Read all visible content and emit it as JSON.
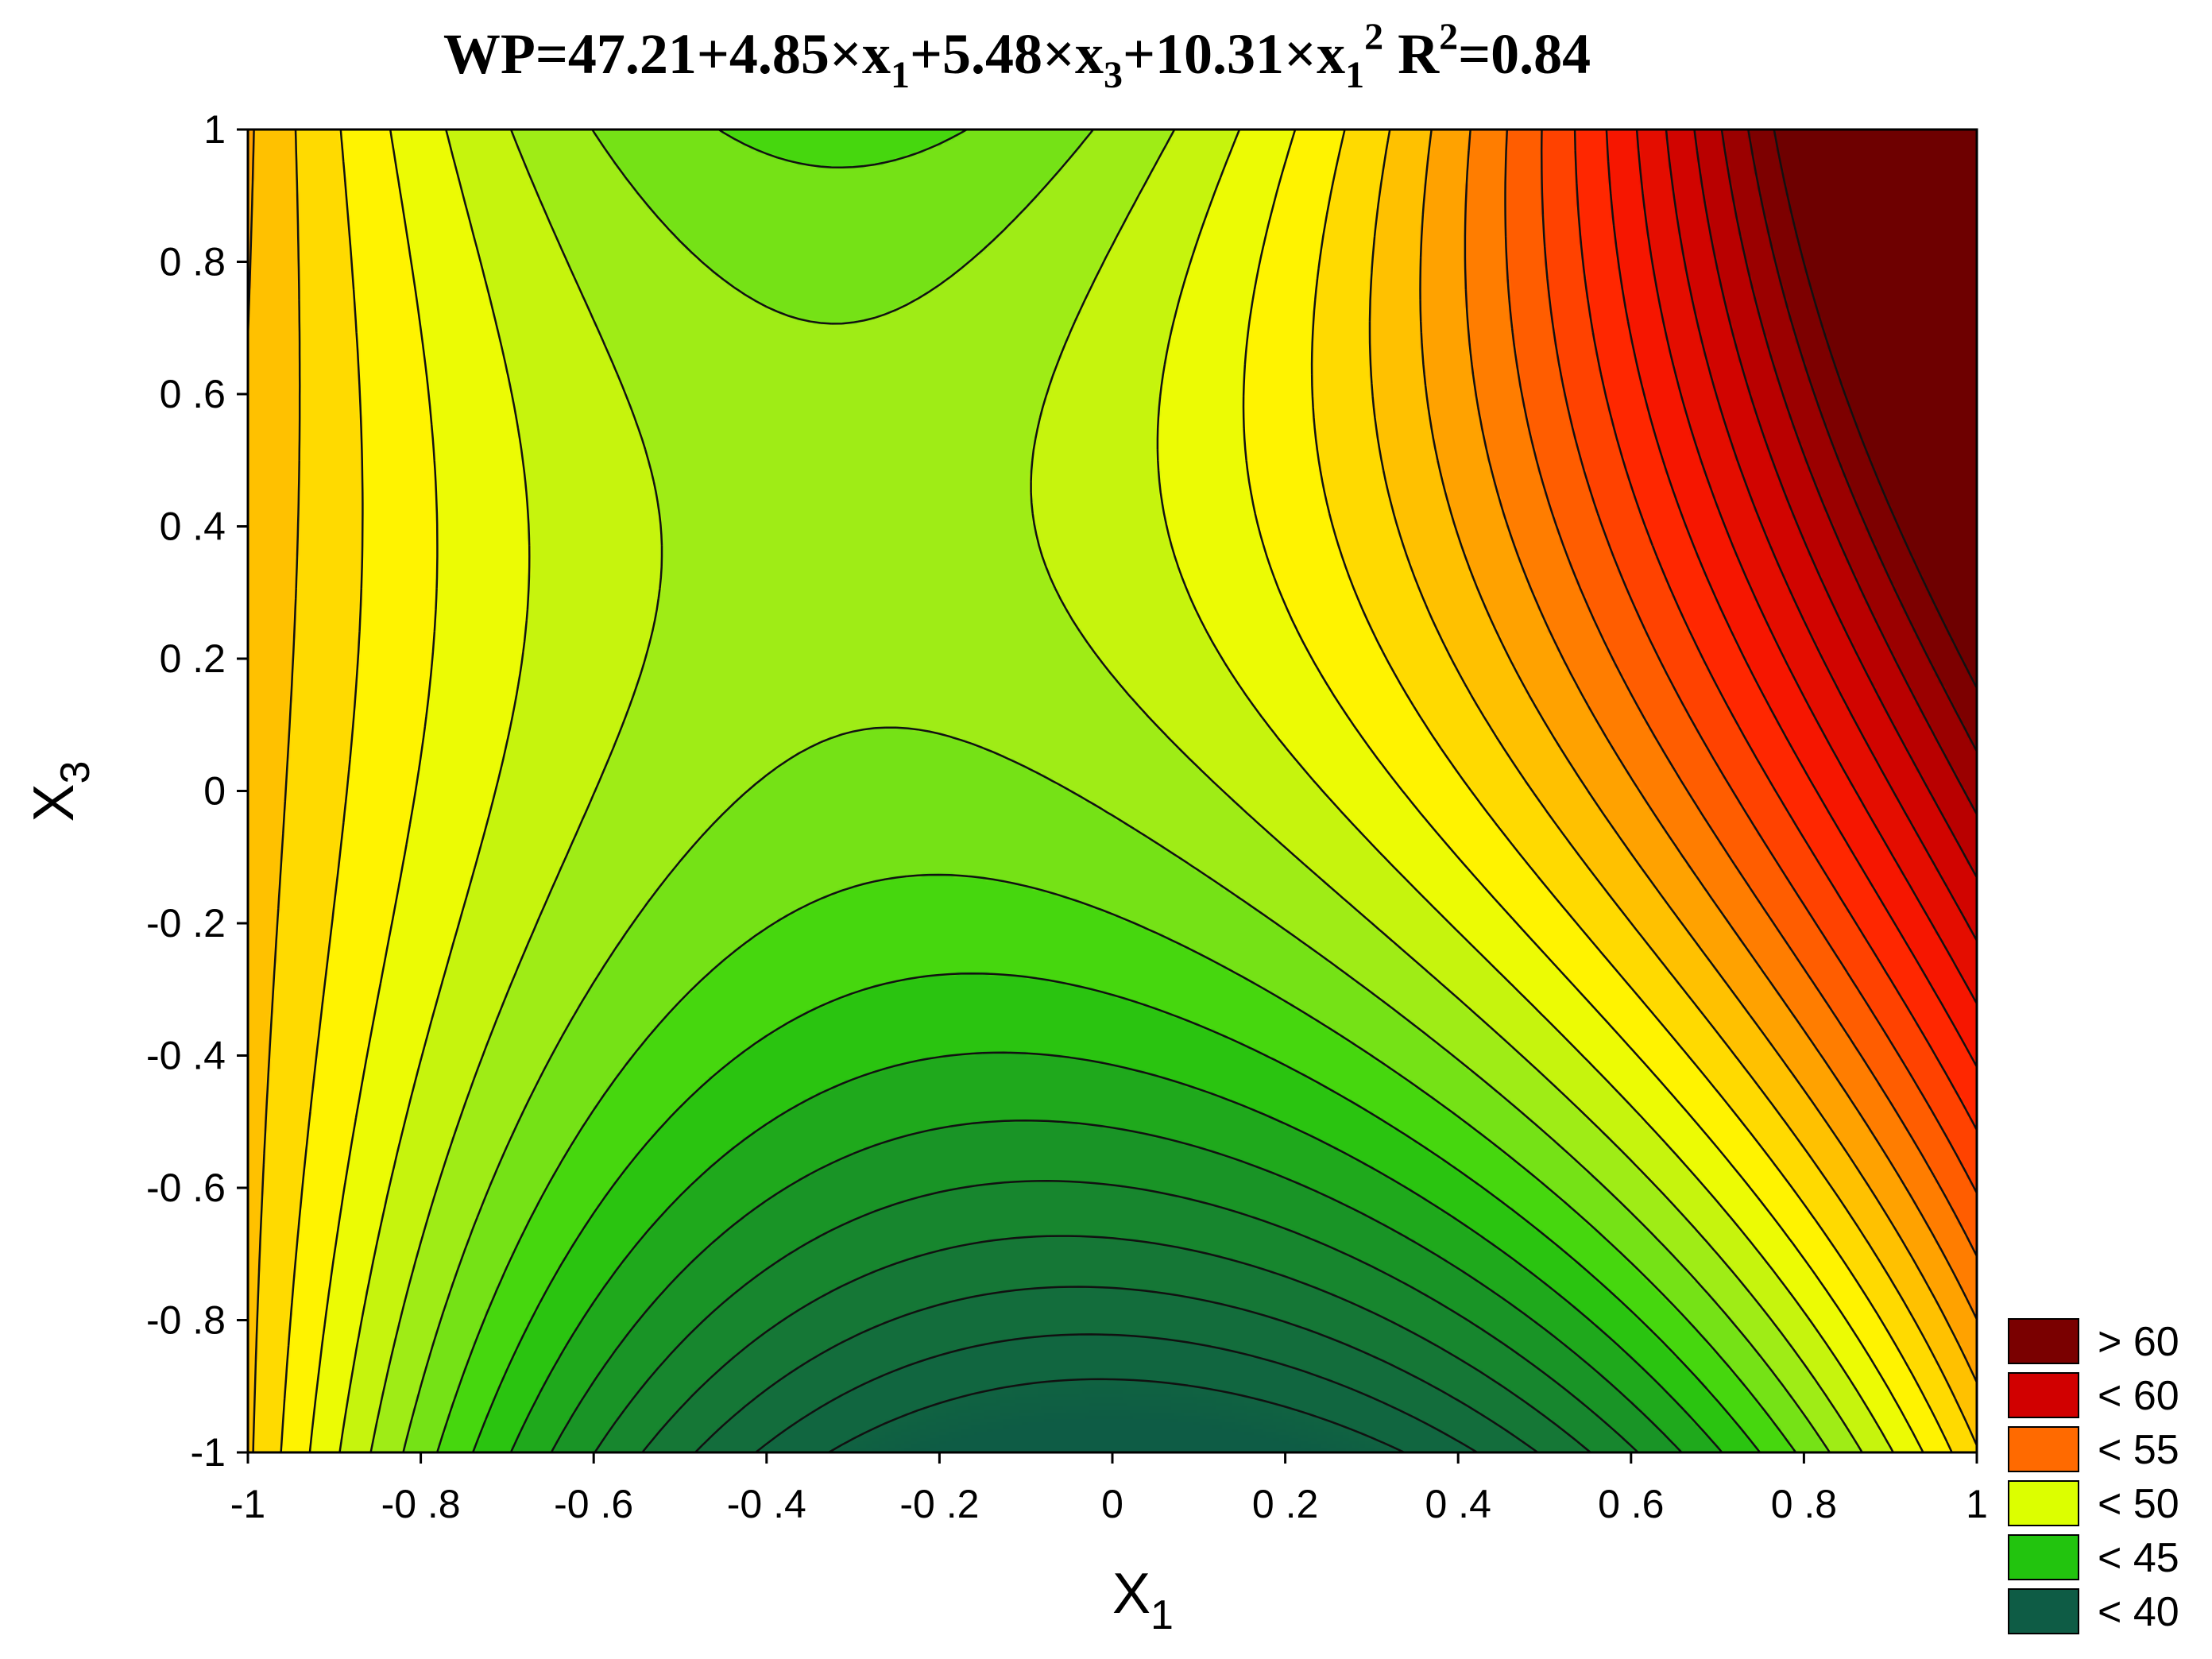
{
  "chart_data": {
    "type": "contour",
    "title_parts": {
      "lhs": "WP=47.21+4.85×x",
      "s1": "1",
      "p2": "+5.48×x",
      "s2": "3",
      "p3": "+10.31×x",
      "s3": "1",
      "sup": "2",
      "r2": "R",
      "r2sup": "2",
      "r2val": "=0.84"
    },
    "xlabel": "X",
    "xlabel_sub": "1",
    "ylabel": "X",
    "ylabel_sub": "3",
    "xlim": [
      -1,
      1
    ],
    "ylim": [
      -1,
      1
    ],
    "x_ticks": [
      {
        "value": -1,
        "label": "-1"
      },
      {
        "value": -0.8,
        "label": "-0 .8"
      },
      {
        "value": -0.6,
        "label": "-0 .6"
      },
      {
        "value": -0.4,
        "label": "-0 .4"
      },
      {
        "value": -0.2,
        "label": "-0 .2"
      },
      {
        "value": 0,
        "label": "0"
      },
      {
        "value": 0.2,
        "label": "0 .2"
      },
      {
        "value": 0.4,
        "label": "0 .4"
      },
      {
        "value": 0.6,
        "label": "0 .6"
      },
      {
        "value": 0.8,
        "label": "0 .8"
      },
      {
        "value": 1,
        "label": "1"
      }
    ],
    "y_ticks": [
      {
        "value": 1,
        "label": "1"
      },
      {
        "value": 0.8,
        "label": "0 .8"
      },
      {
        "value": 0.6,
        "label": "0 .6"
      },
      {
        "value": 0.4,
        "label": "0 .4"
      },
      {
        "value": 0.2,
        "label": "0 .2"
      },
      {
        "value": 0,
        "label": "0"
      },
      {
        "value": -0.2,
        "label": "-0 .2"
      },
      {
        "value": -0.4,
        "label": "-0 .4"
      },
      {
        "value": -0.6,
        "label": "-0 .6"
      },
      {
        "value": -0.8,
        "label": "-0 .8"
      },
      {
        "value": -1,
        "label": "-1"
      }
    ],
    "contour_levels": [
      38,
      39,
      40,
      41,
      42,
      43,
      44,
      45,
      46,
      47,
      48,
      49,
      50,
      51,
      52,
      53,
      54,
      55,
      56,
      57,
      58,
      59,
      60,
      61,
      62,
      63,
      64
    ],
    "color_stops": [
      {
        "value": 37,
        "color": "#0e5c45"
      },
      {
        "value": 40,
        "color": "#14703a"
      },
      {
        "value": 43,
        "color": "#1a9b22"
      },
      {
        "value": 45,
        "color": "#2fd10a"
      },
      {
        "value": 47,
        "color": "#8ce81a"
      },
      {
        "value": 50,
        "color": "#ffff00"
      },
      {
        "value": 53,
        "color": "#ffb400"
      },
      {
        "value": 55,
        "color": "#ff6a00"
      },
      {
        "value": 58,
        "color": "#ff1a00"
      },
      {
        "value": 61,
        "color": "#c80000"
      },
      {
        "value": 64,
        "color": "#6e0000"
      }
    ],
    "legend": [
      {
        "label": "> 60",
        "color": "#7a0000"
      },
      {
        "label": "< 60",
        "color": "#d10000"
      },
      {
        "label": "< 55",
        "color": "#ff6a00"
      },
      {
        "label": "< 50",
        "color": "#dcff00"
      },
      {
        "label": "< 45",
        "color": "#22c40e"
      },
      {
        "label": "< 40",
        "color": "#0e5c45"
      }
    ],
    "legend_position": "bottom-right"
  }
}
